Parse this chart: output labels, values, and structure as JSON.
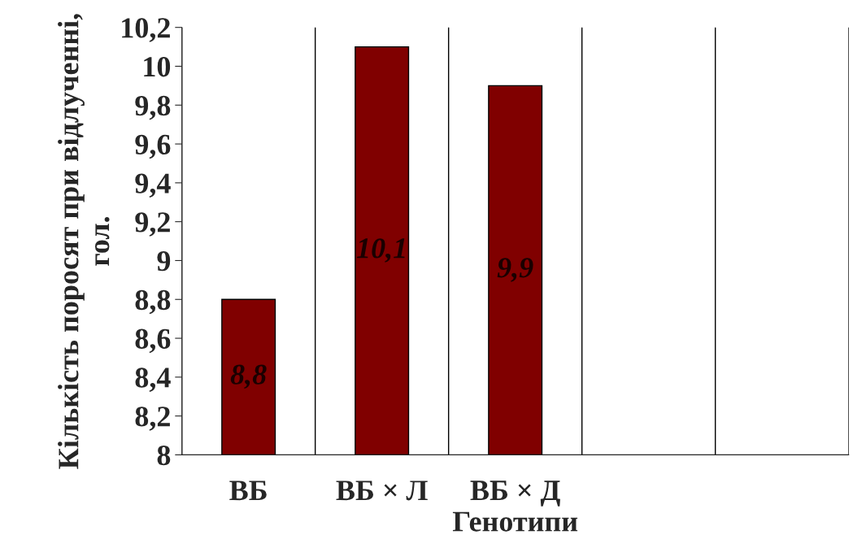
{
  "chart_data": {
    "type": "bar",
    "xlabel": "Генотипи",
    "ylabel": "Кількість поросят при відлученні, гол.",
    "categories": [
      "ВБ",
      "ВБ × Л",
      "ВБ × Д",
      null,
      null
    ],
    "values": [
      8.8,
      10.1,
      9.9,
      null,
      null
    ],
    "value_labels": [
      "8,8",
      "10,1",
      "9,9",
      null,
      null
    ],
    "color": "#800000",
    "ylim": [
      8,
      10.2
    ],
    "yticks": [
      8,
      {
        "value": 8.2,
        "label": "8,2"
      },
      {
        "value": 8.4,
        "label": "8,4"
      },
      {
        "value": 8.6,
        "label": "8,6"
      },
      {
        "value": 8.8,
        "label": "8,8"
      },
      9,
      {
        "value": 9.2,
        "label": "9,2"
      },
      {
        "value": 9.4,
        "label": "9,4"
      },
      {
        "value": 9.6,
        "label": "9,6"
      },
      {
        "value": 9.8,
        "label": "9,8"
      },
      10,
      {
        "value": 10.2,
        "label": "10,2"
      }
    ],
    "grid": "x",
    "legend": false
  }
}
